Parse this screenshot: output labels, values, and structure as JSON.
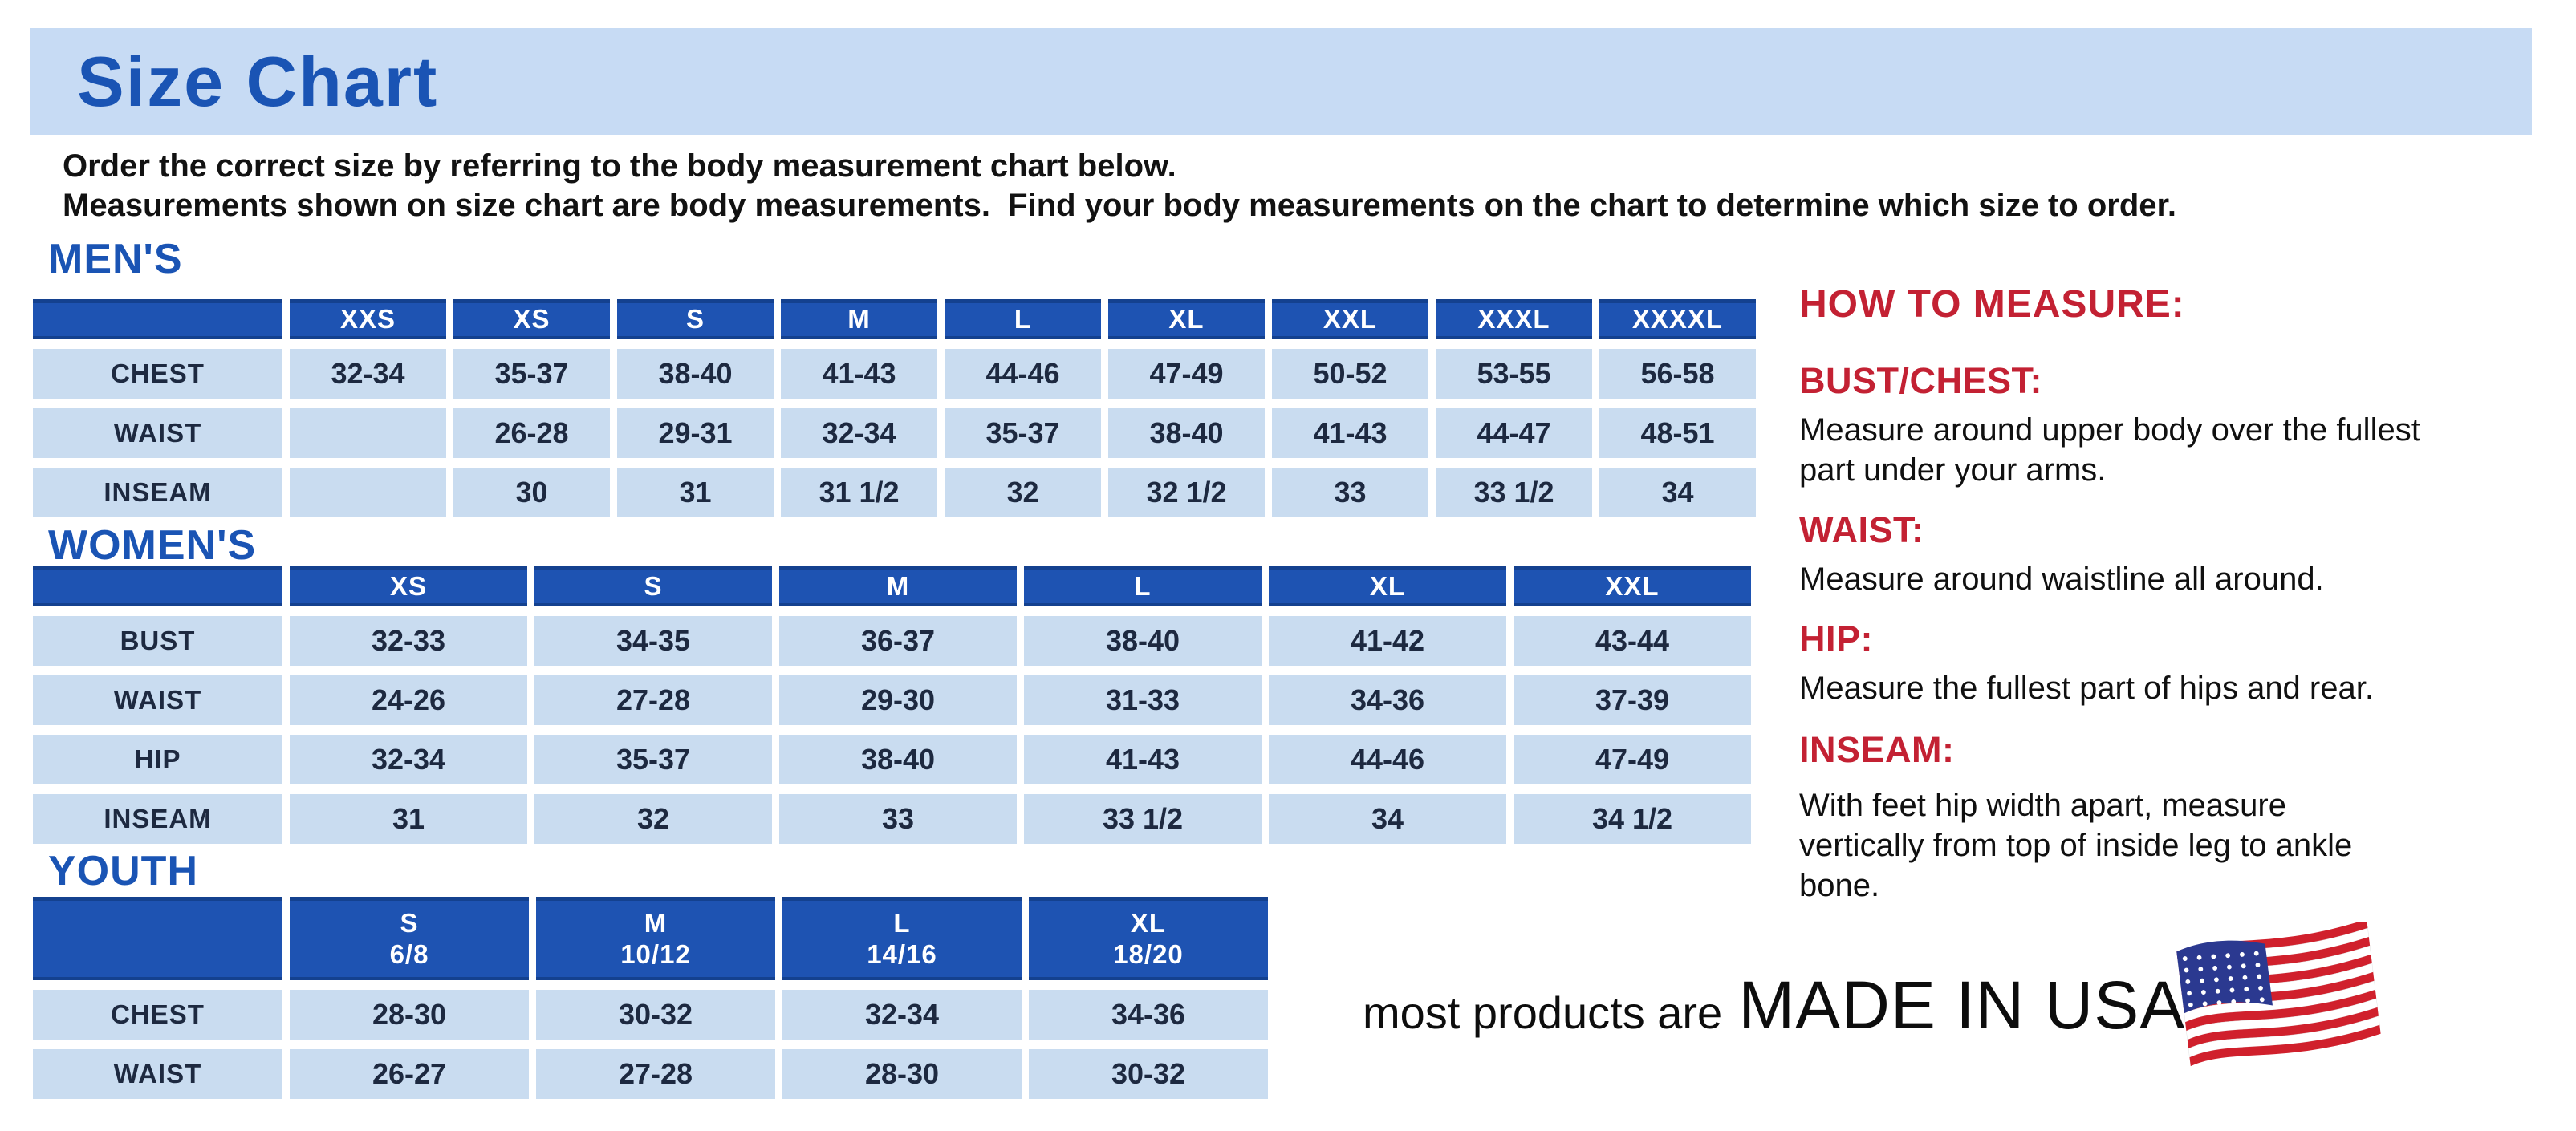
{
  "page": {
    "title": "Size Chart",
    "intro_line1": "Order the correct size by referring to the body measurement chart below.",
    "intro_line2": "Measurements shown on size chart are body measurements.  Find your body measurements on the chart to determine which size to order."
  },
  "colors": {
    "banner_background": "#c7dbf4",
    "heading_blue": "#1a54b4",
    "table_header_blue": "#1e53b2",
    "table_cell_blue": "#c9dcf0",
    "table_text_navy": "#1d2940",
    "measure_red": "#c32133"
  },
  "tables": {
    "mens": {
      "heading": "MEN'S",
      "columns": [
        "XXS",
        "XS",
        "S",
        "M",
        "L",
        "XL",
        "XXL",
        "XXXL",
        "XXXXL"
      ],
      "rows": [
        {
          "label": "CHEST",
          "values": [
            "32-34",
            "35-37",
            "38-40",
            "41-43",
            "44-46",
            "47-49",
            "50-52",
            "53-55",
            "56-58"
          ]
        },
        {
          "label": "WAIST",
          "values": [
            "",
            "26-28",
            "29-31",
            "32-34",
            "35-37",
            "38-40",
            "41-43",
            "44-47",
            "48-51"
          ]
        },
        {
          "label": "INSEAM",
          "values": [
            "",
            "30",
            "31",
            "31 1/2",
            "32",
            "32 1/2",
            "33",
            "33 1/2",
            "34"
          ]
        }
      ]
    },
    "womens": {
      "heading": "WOMEN'S",
      "columns": [
        "XS",
        "S",
        "M",
        "L",
        "XL",
        "XXL"
      ],
      "rows": [
        {
          "label": "BUST",
          "values": [
            "32-33",
            "34-35",
            "36-37",
            "38-40",
            "41-42",
            "43-44"
          ]
        },
        {
          "label": "WAIST",
          "values": [
            "24-26",
            "27-28",
            "29-30",
            "31-33",
            "34-36",
            "37-39"
          ]
        },
        {
          "label": "HIP",
          "values": [
            "32-34",
            "35-37",
            "38-40",
            "41-43",
            "44-46",
            "47-49"
          ]
        },
        {
          "label": "INSEAM",
          "values": [
            "31",
            "32",
            "33",
            "33 1/2",
            "34",
            "34 1/2"
          ]
        }
      ]
    },
    "youth": {
      "heading": "YOUTH",
      "columns": [
        {
          "size": "S",
          "range": "6/8"
        },
        {
          "size": "M",
          "range": "10/12"
        },
        {
          "size": "L",
          "range": "14/16"
        },
        {
          "size": "XL",
          "range": "18/20"
        }
      ],
      "rows": [
        {
          "label": "CHEST",
          "values": [
            "28-30",
            "30-32",
            "32-34",
            "34-36"
          ]
        },
        {
          "label": "WAIST",
          "values": [
            "26-27",
            "27-28",
            "28-30",
            "30-32"
          ]
        }
      ]
    }
  },
  "how_to_measure": {
    "heading": "HOW TO MEASURE:",
    "items": [
      {
        "label": "BUST/CHEST:",
        "text": "Measure around upper body over the fullest part under your arms."
      },
      {
        "label": "WAIST:",
        "text": "Measure around waistline all around."
      },
      {
        "label": "HIP:",
        "text": "Measure the fullest part of hips and rear."
      },
      {
        "label": "INSEAM:",
        "text": "With feet hip width apart, measure vertically from top of inside leg to ankle bone."
      }
    ]
  },
  "footer": {
    "made_in_prefix": "most products are",
    "made_in": "MADE IN USA",
    "flag_icon": "usa-flag-icon"
  }
}
